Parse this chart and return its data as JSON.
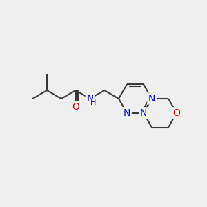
{
  "background_color": "#efefef",
  "bond_color": "#3a3a3a",
  "bond_width": 1.5,
  "atom_colors": {
    "N": "#0000cc",
    "O": "#cc0000",
    "C": "#3a3a3a"
  },
  "font_size_atom": 10,
  "figsize": [
    3.0,
    3.0
  ],
  "dpi": 100
}
